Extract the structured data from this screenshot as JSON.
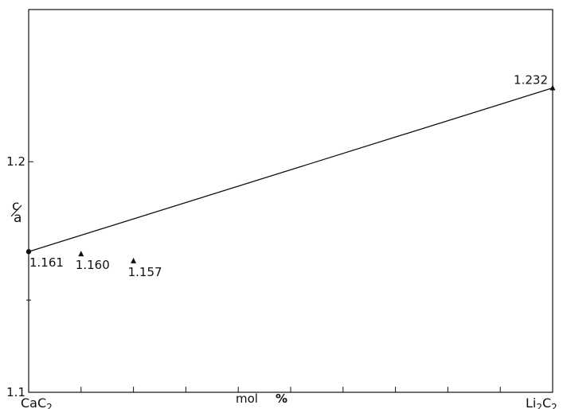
{
  "chart_data": {
    "type": "scatter",
    "ylabel_num": "c",
    "ylabel_den": "a",
    "xlabel_left": "mol",
    "xlabel_right": "%",
    "ylim": [
      1.1,
      1.266
    ],
    "xlim": [
      0,
      100
    ],
    "yticks": [
      1.1,
      1.2
    ],
    "ytick_labels": [
      "1.1",
      "1.2"
    ],
    "x_end_labels": {
      "left": {
        "main": "CaC",
        "sub": "2"
      },
      "right": {
        "main1": "Li",
        "sub1": "2",
        "main2": "C",
        "sub2": "2"
      }
    },
    "points": [
      {
        "x": 0,
        "y": 1.161,
        "label": "1.161",
        "marker": "circle"
      },
      {
        "x": 10,
        "y": 1.16,
        "label": "1.160",
        "marker": "triangle"
      },
      {
        "x": 20,
        "y": 1.157,
        "label": "1.157",
        "marker": "triangle"
      },
      {
        "x": 100,
        "y": 1.232,
        "label": "1.232",
        "marker": "triangle"
      }
    ],
    "trend_line": {
      "x": [
        0,
        100
      ],
      "y": [
        1.161,
        1.232
      ]
    },
    "grid": false,
    "legend": "none"
  }
}
